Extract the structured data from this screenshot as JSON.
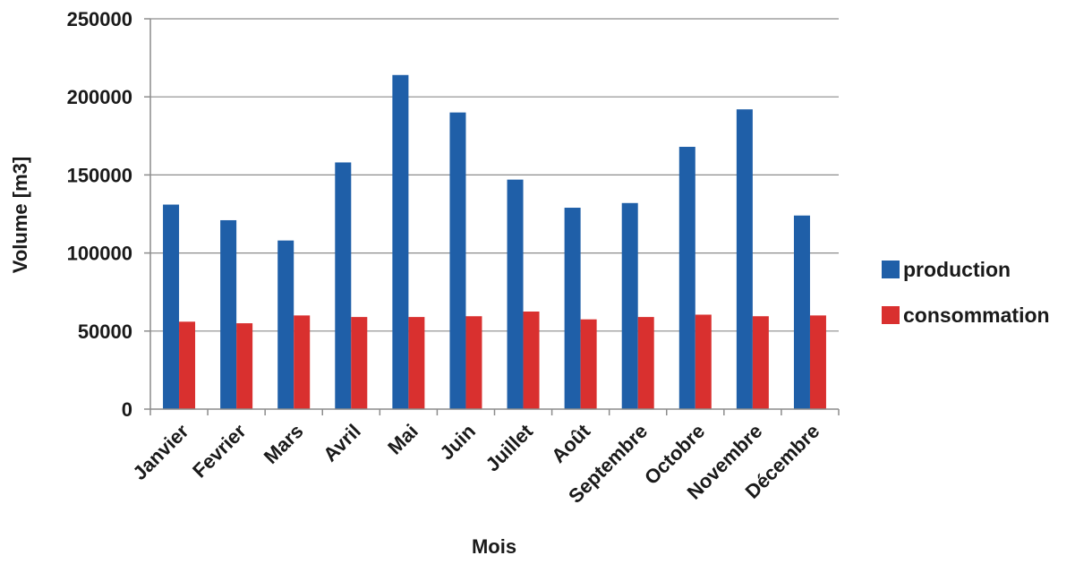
{
  "chart_data": {
    "type": "bar",
    "title": "",
    "xlabel": "Mois",
    "ylabel": "Volume  [m3]",
    "ylim": [
      0,
      250000
    ],
    "yticks": [
      0,
      50000,
      100000,
      150000,
      200000,
      250000
    ],
    "grid": true,
    "legend_position": "right",
    "categories": [
      "Janvier",
      "Fevrier",
      "Mars",
      "Avril",
      "Mai",
      "Juin",
      "Juillet",
      "Août",
      "Septembre",
      "Octobre",
      "Novembre",
      "Décembre"
    ],
    "series": [
      {
        "name": "production",
        "color": "#1f5fa8",
        "values": [
          131000,
          121000,
          108000,
          158000,
          214000,
          190000,
          147000,
          129000,
          132000,
          168000,
          192000,
          124000
        ]
      },
      {
        "name": "consommation",
        "color": "#d9302f",
        "values": [
          56000,
          55000,
          60000,
          59000,
          59000,
          59500,
          62500,
          57500,
          59000,
          60500,
          59500,
          60000
        ]
      }
    ]
  }
}
